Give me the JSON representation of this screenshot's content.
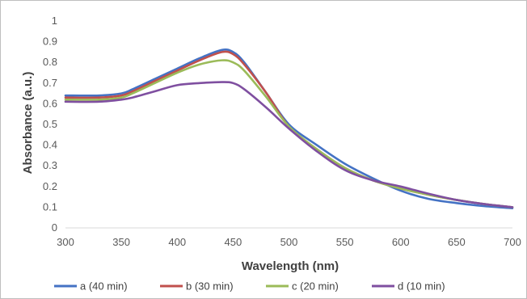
{
  "chart_data": {
    "type": "line",
    "xlabel": "Wavelength (nm)",
    "ylabel": "Absorbance (a.u.)",
    "xlim": [
      300,
      700
    ],
    "ylim": [
      0,
      1
    ],
    "x_ticks": [
      "300",
      "350",
      "400",
      "450",
      "500",
      "550",
      "600",
      "650",
      "700"
    ],
    "y_ticks": [
      "0",
      "0.1",
      "0.2",
      "0.3",
      "0.4",
      "0.5",
      "0.6",
      "0.7",
      "0.8",
      "0.9",
      "1"
    ],
    "grid": false,
    "legend_position": "bottom",
    "series": [
      {
        "name": "a (40 min)",
        "color": "#4472C4",
        "x": [
          300,
          330,
          350,
          360,
          380,
          400,
          420,
          440,
          450,
          460,
          480,
          500,
          525,
          550,
          575,
          600,
          625,
          650,
          675,
          700
        ],
        "y": [
          0.64,
          0.64,
          0.65,
          0.67,
          0.72,
          0.77,
          0.82,
          0.86,
          0.85,
          0.8,
          0.65,
          0.5,
          0.4,
          0.31,
          0.24,
          0.18,
          0.14,
          0.12,
          0.105,
          0.095
        ]
      },
      {
        "name": "b (30 min)",
        "color": "#C0504D",
        "x": [
          300,
          330,
          350,
          360,
          380,
          400,
          420,
          440,
          450,
          460,
          480,
          500,
          525,
          550,
          575,
          600,
          625,
          650,
          675,
          700
        ],
        "y": [
          0.63,
          0.63,
          0.64,
          0.66,
          0.71,
          0.76,
          0.81,
          0.85,
          0.84,
          0.79,
          0.65,
          0.49,
          0.38,
          0.29,
          0.23,
          0.19,
          0.16,
          0.135,
          0.115,
          0.1
        ]
      },
      {
        "name": "c (20 min)",
        "color": "#9BBB59",
        "x": [
          300,
          330,
          350,
          360,
          380,
          400,
          420,
          440,
          450,
          460,
          480,
          500,
          525,
          550,
          575,
          600,
          625,
          650,
          675,
          700
        ],
        "y": [
          0.62,
          0.62,
          0.63,
          0.65,
          0.7,
          0.75,
          0.79,
          0.81,
          0.8,
          0.76,
          0.63,
          0.49,
          0.38,
          0.29,
          0.23,
          0.19,
          0.16,
          0.135,
          0.115,
          0.1
        ]
      },
      {
        "name": "d (10 min)",
        "color": "#7F4FA0",
        "x": [
          300,
          330,
          350,
          360,
          380,
          400,
          420,
          440,
          450,
          460,
          480,
          500,
          525,
          550,
          575,
          600,
          625,
          650,
          675,
          700
        ],
        "y": [
          0.61,
          0.61,
          0.62,
          0.63,
          0.66,
          0.69,
          0.7,
          0.705,
          0.7,
          0.67,
          0.58,
          0.48,
          0.37,
          0.28,
          0.23,
          0.2,
          0.165,
          0.135,
          0.115,
          0.1
        ]
      }
    ]
  }
}
